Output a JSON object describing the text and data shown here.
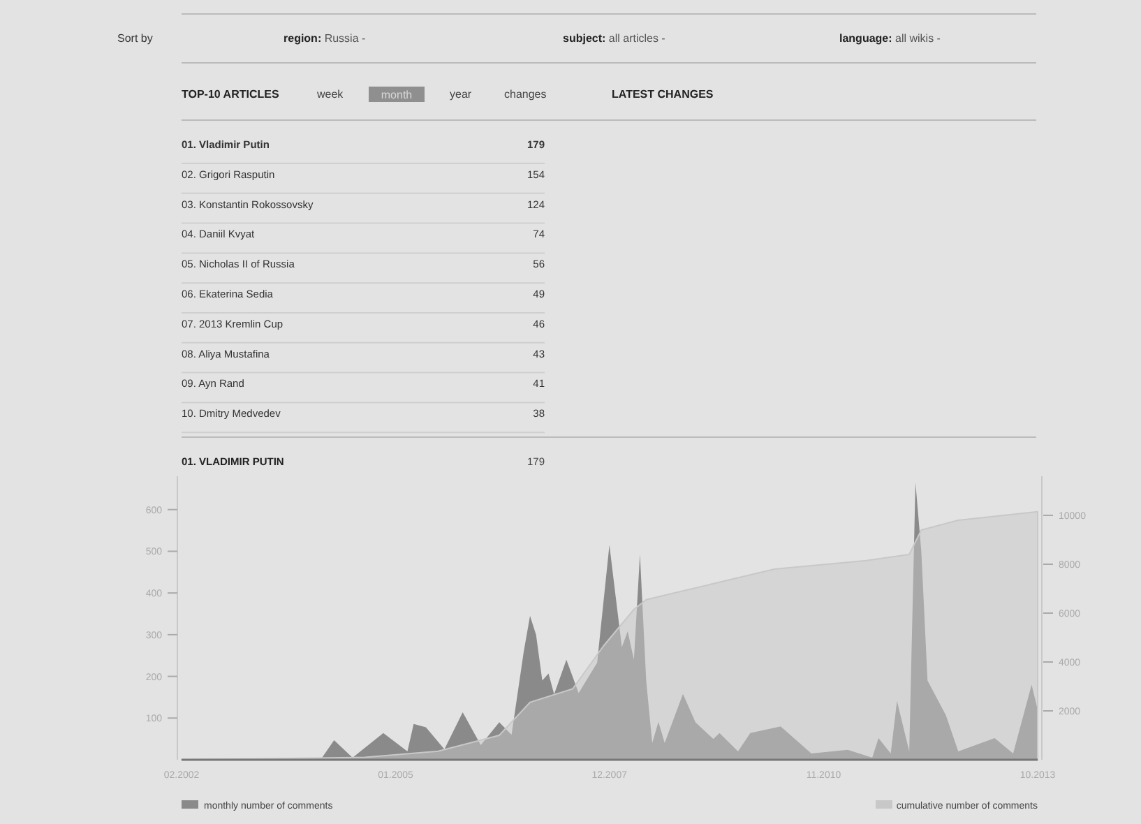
{
  "chart_data": [
    {
      "type": "other",
      "title": "TOP-10 ARTICLES",
      "categories": [
        "01. Vladimir Putin",
        "02. Grigori Rasputin",
        "03. Konstantin Rokossovsky",
        "04. Daniil Kvyat",
        "05. Nicholas II of Russia",
        "06. Ekaterina Sedia",
        "07. 2013 Kremlin Cup",
        "08. Aliya Mustafina",
        "09. Ayn Rand",
        "10. Dmitry Medvedev"
      ],
      "values": [
        179,
        154,
        124,
        74,
        56,
        49,
        46,
        43,
        41,
        38
      ],
      "data_labels": true,
      "annotations": [
        "Sort by",
        "region: Russia -",
        "subject: all articles -",
        "language: all wikis -",
        "week",
        "month",
        "year",
        "changes",
        "LATEST CHANGES"
      ]
    },
    {
      "type": "area",
      "title": "01. VLADIMIR PUTIN",
      "subtitle": "179",
      "legend": "bottom",
      "xlim": [
        "2002-02",
        "2013-10"
      ],
      "xticks": [
        {
          "value": "2002-02",
          "label": "02.2002"
        },
        {
          "value": "2005-01",
          "label": "01.2005"
        },
        {
          "value": "2007-12",
          "label": "12.2007"
        },
        {
          "value": "2010-11",
          "label": "11.2010"
        },
        {
          "value": "2013-10",
          "label": "10.2013"
        }
      ],
      "ylim": [
        0,
        680
      ],
      "yticks": [
        100,
        200,
        300,
        400,
        500,
        600
      ],
      "y2lim": [
        0,
        11600
      ],
      "y2ticks": [
        2000,
        4000,
        6000,
        8000,
        10000
      ],
      "series": [
        {
          "name": "monthly number of comments",
          "color": "#8a8a8a",
          "x": [
            "2002-02",
            "2004-01",
            "2004-03",
            "2004-06",
            "2004-11",
            "2005-03",
            "2005-04",
            "2005-06",
            "2005-09",
            "2005-12",
            "2006-03",
            "2006-06",
            "2006-08",
            "2006-10",
            "2006-11",
            "2006-12",
            "2007-01",
            "2007-02",
            "2007-03",
            "2007-05",
            "2007-07",
            "2007-10",
            "2007-12",
            "2008-01",
            "2008-02",
            "2008-03",
            "2008-04",
            "2008-05",
            "2008-06",
            "2008-07",
            "2008-08",
            "2008-09",
            "2008-12",
            "2009-02",
            "2009-05",
            "2009-06",
            "2009-09",
            "2009-11",
            "2010-04",
            "2010-09",
            "2011-03",
            "2011-07",
            "2011-08",
            "2011-10",
            "2011-11",
            "2012-01",
            "2012-02",
            "2012-03",
            "2012-04",
            "2012-07",
            "2012-09",
            "2013-03",
            "2013-06",
            "2013-09",
            "2013-10"
          ],
          "values": [
            0,
            5,
            47,
            5,
            64,
            20,
            86,
            78,
            25,
            114,
            35,
            90,
            60,
            260,
            345,
            300,
            190,
            207,
            157,
            240,
            160,
            233,
            515,
            392,
            270,
            308,
            240,
            493,
            190,
            40,
            91,
            40,
            158,
            90,
            50,
            64,
            20,
            64,
            80,
            15,
            24,
            5,
            52,
            15,
            141,
            20,
            665,
            500,
            190,
            107,
            20,
            52,
            15,
            180,
            120
          ]
        },
        {
          "name": "cumulative number of comments",
          "color": "#c8c8c8",
          "axis": "y2",
          "x": [
            "2002-02",
            "2004-08",
            "2005-08",
            "2006-06",
            "2006-11",
            "2007-06",
            "2007-11",
            "2008-04",
            "2008-06",
            "2008-11",
            "2010-03",
            "2011-06",
            "2012-01",
            "2012-03",
            "2012-09",
            "2013-10"
          ],
          "values": [
            0,
            100,
            350,
            1000,
            2350,
            2900,
            4650,
            6150,
            6550,
            6850,
            7800,
            8150,
            8400,
            9400,
            9800,
            10150
          ]
        }
      ]
    }
  ]
}
